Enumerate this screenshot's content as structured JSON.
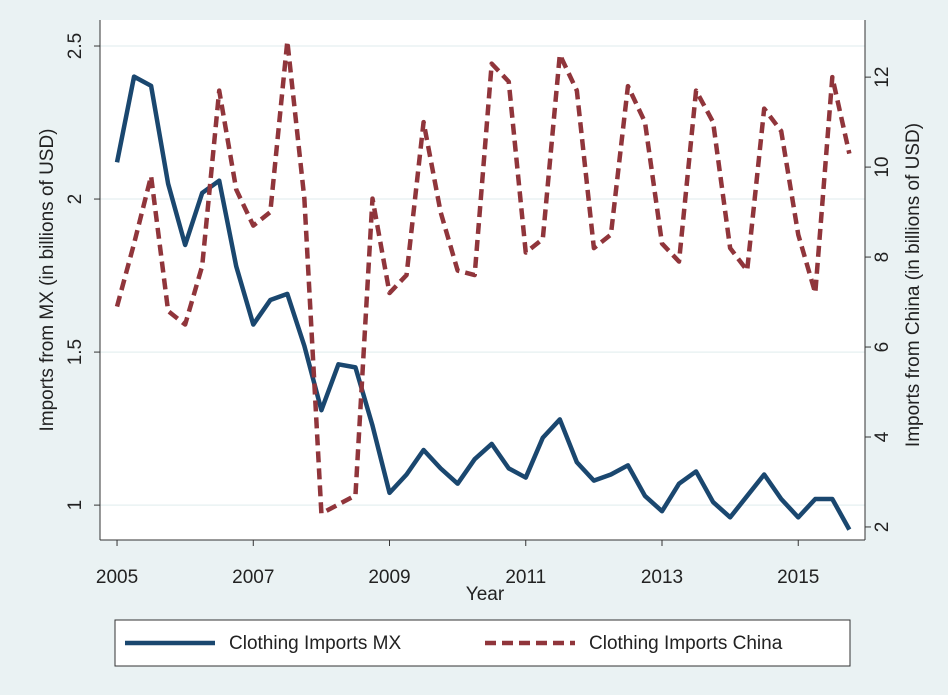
{
  "chart_data": {
    "type": "line",
    "x_label": "Year",
    "y_label": "Imports from MX (in billions of USD)",
    "y2_label": "Imports from China (in billions of USD)",
    "x": [
      2005,
      2005.25,
      2005.5,
      2005.75,
      2006,
      2006.25,
      2006.5,
      2006.75,
      2007,
      2007.25,
      2007.5,
      2007.75,
      2008,
      2008.25,
      2008.5,
      2008.75,
      2009,
      2009.25,
      2009.5,
      2009.75,
      2010,
      2010.25,
      2010.5,
      2010.75,
      2011,
      2011.25,
      2011.5,
      2011.75,
      2012,
      2012.25,
      2012.5,
      2012.75,
      2013,
      2013.25,
      2013.5,
      2013.75,
      2014,
      2014.25,
      2014.5,
      2014.75,
      2015,
      2015.25,
      2015.5,
      2015.75
    ],
    "series": [
      {
        "name": "Clothing Imports MX",
        "color": "#1a476f",
        "dash": false,
        "values": [
          2.12,
          2.4,
          2.37,
          2.05,
          1.85,
          2.02,
          2.06,
          1.78,
          1.59,
          1.67,
          1.69,
          1.52,
          1.31,
          1.46,
          1.45,
          1.26,
          1.04,
          1.1,
          1.18,
          1.12,
          1.07,
          1.15,
          1.2,
          1.12,
          1.09,
          1.22,
          1.28,
          1.14,
          1.08,
          1.1,
          1.13,
          1.03,
          0.98,
          1.07,
          1.11,
          1.01,
          0.96,
          1.03,
          1.1,
          1.02,
          0.96,
          1.02,
          1.02,
          0.92
        ]
      },
      {
        "name": "Clothing Imports China",
        "color": "#90353b",
        "dash": true,
        "axis": "y2",
        "values": [
          6.9,
          8.3,
          9.8,
          6.8,
          6.5,
          7.8,
          11.7,
          9.5,
          8.7,
          9.0,
          12.8,
          9.3,
          2.3,
          2.5,
          2.7,
          9.3,
          7.2,
          7.6,
          11.0,
          9.0,
          7.7,
          7.6,
          12.3,
          11.9,
          8.1,
          8.4,
          12.5,
          11.7,
          8.2,
          8.5,
          11.8,
          11.0,
          8.3,
          7.9,
          11.7,
          11.0,
          8.2,
          7.7,
          11.3,
          10.8,
          8.5,
          7.2,
          12.0,
          10.3
        ]
      }
    ],
    "xlim": [
      2004.75,
      2015.98
    ],
    "xticks": [
      2005,
      2007,
      2009,
      2011,
      2013,
      2015
    ],
    "ylim": [
      0.886,
      2.585
    ],
    "yticks": [
      1,
      1.5,
      2,
      2.5
    ],
    "y2lim": [
      1.71,
      13.27
    ],
    "y2ticks": [
      2,
      4,
      6,
      8,
      10,
      12
    ],
    "grid": true,
    "legend": "bottom"
  }
}
